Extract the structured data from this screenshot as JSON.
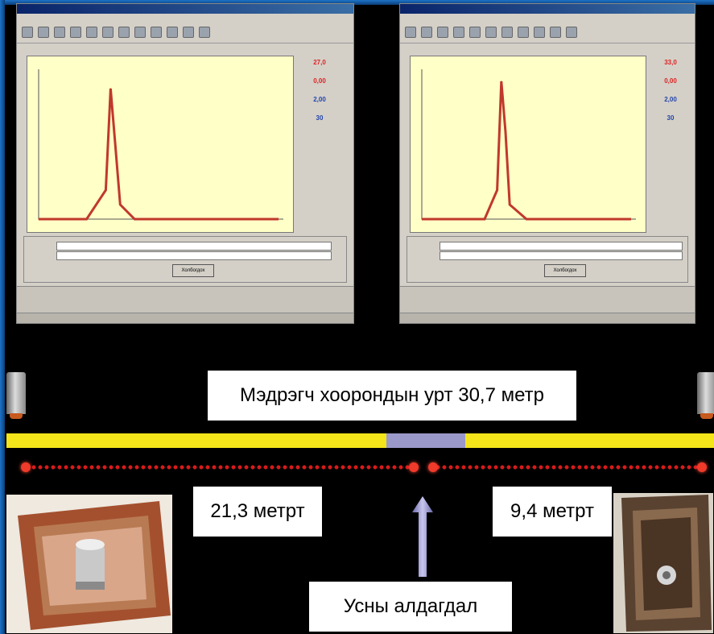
{
  "windows": [
    {
      "id": "left",
      "chart_data": {
        "type": "line",
        "x": [
          0,
          10,
          20,
          28,
          30,
          32,
          34,
          40,
          60,
          80,
          100
        ],
        "values": [
          0,
          0,
          0,
          0.2,
          0.9,
          0.5,
          0.1,
          0,
          0,
          0,
          0
        ]
      },
      "side_values": [
        "27,0",
        "0,00",
        "2,00",
        "30"
      ],
      "button": "Холбогдох"
    },
    {
      "id": "right",
      "chart_data": {
        "type": "line",
        "x": [
          0,
          10,
          20,
          30,
          36,
          38,
          40,
          42,
          50,
          70,
          100
        ],
        "values": [
          0,
          0,
          0,
          0,
          0.2,
          0.95,
          0.6,
          0.1,
          0,
          0,
          0
        ]
      },
      "side_values": [
        "33,0",
        "0,00",
        "2,00",
        "30"
      ],
      "button": "Холбогдох"
    }
  ],
  "diagram": {
    "total_distance_label": "Мэдрэгч хоорондын урт 30,7 метр",
    "left_distance_label": "21,3 метрт",
    "right_distance_label": "9,4 метрт",
    "leak_label": "Усны алдагдал",
    "colors": {
      "pipe": "#f4e41a",
      "leak_zone": "#9a98c8",
      "distance_dots": "#d81a1a",
      "frame": "#1e73c8"
    }
  }
}
